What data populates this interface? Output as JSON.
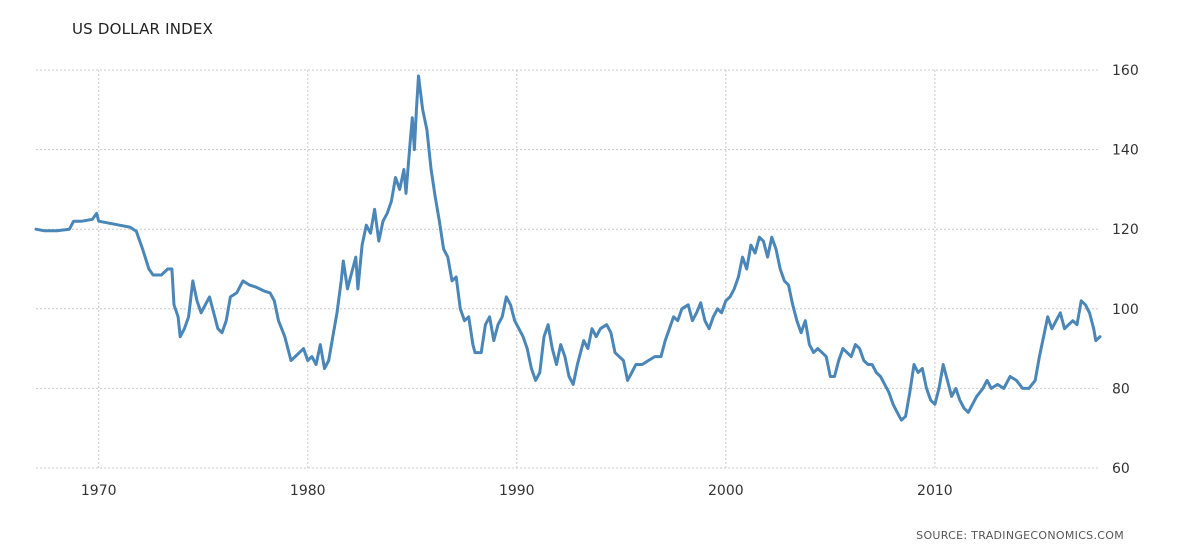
{
  "chart_data": {
    "type": "line",
    "title": "US DOLLAR INDEX",
    "source": "SOURCE: TRADINGECONOMICS.COM",
    "xlabel": "",
    "ylabel": "",
    "xlim": [
      1967.0,
      2017.9
    ],
    "ylim": [
      60,
      160
    ],
    "x_ticks": [
      1970,
      1980,
      1990,
      2000,
      2010
    ],
    "y_ticks": [
      60,
      80,
      100,
      120,
      140,
      160
    ],
    "grid": true,
    "line_color": "#4a86b8",
    "series": [
      {
        "points": [
          [
            1967.0,
            120
          ],
          [
            1967.4,
            119.6
          ],
          [
            1968.0,
            119.6
          ],
          [
            1968.6,
            120
          ],
          [
            1968.8,
            122
          ],
          [
            1969.2,
            122
          ],
          [
            1969.7,
            122.5
          ],
          [
            1969.9,
            124
          ],
          [
            1970.0,
            122
          ],
          [
            1970.5,
            121.5
          ],
          [
            1971.0,
            121
          ],
          [
            1971.5,
            120.5
          ],
          [
            1971.8,
            119.5
          ],
          [
            1972.1,
            115
          ],
          [
            1972.4,
            110
          ],
          [
            1972.6,
            108.5
          ],
          [
            1973.0,
            108.5
          ],
          [
            1973.3,
            110
          ],
          [
            1973.5,
            110
          ],
          [
            1973.6,
            101
          ],
          [
            1973.8,
            98
          ],
          [
            1973.9,
            93
          ],
          [
            1974.1,
            95
          ],
          [
            1974.3,
            98
          ],
          [
            1974.5,
            107
          ],
          [
            1974.7,
            102
          ],
          [
            1974.9,
            99
          ],
          [
            1975.1,
            101
          ],
          [
            1975.3,
            103
          ],
          [
            1975.5,
            99
          ],
          [
            1975.7,
            95
          ],
          [
            1975.9,
            94
          ],
          [
            1976.1,
            97
          ],
          [
            1976.3,
            103
          ],
          [
            1976.6,
            104
          ],
          [
            1976.9,
            107
          ],
          [
            1977.2,
            106
          ],
          [
            1977.5,
            105.5
          ],
          [
            1977.9,
            104.5
          ],
          [
            1978.2,
            104
          ],
          [
            1978.4,
            102
          ],
          [
            1978.6,
            97
          ],
          [
            1978.9,
            93
          ],
          [
            1979.2,
            87
          ],
          [
            1979.4,
            88
          ],
          [
            1979.6,
            89
          ],
          [
            1979.8,
            90
          ],
          [
            1980.0,
            87
          ],
          [
            1980.2,
            88
          ],
          [
            1980.4,
            86
          ],
          [
            1980.6,
            91
          ],
          [
            1980.8,
            85
          ],
          [
            1981.0,
            87
          ],
          [
            1981.2,
            93
          ],
          [
            1981.4,
            99
          ],
          [
            1981.6,
            107
          ],
          [
            1981.7,
            112
          ],
          [
            1981.9,
            105
          ],
          [
            1982.1,
            109
          ],
          [
            1982.3,
            113
          ],
          [
            1982.4,
            105
          ],
          [
            1982.6,
            116
          ],
          [
            1982.8,
            121
          ],
          [
            1983.0,
            119
          ],
          [
            1983.2,
            125
          ],
          [
            1983.4,
            117
          ],
          [
            1983.6,
            122
          ],
          [
            1983.8,
            124
          ],
          [
            1984.0,
            127
          ],
          [
            1984.2,
            133
          ],
          [
            1984.4,
            130
          ],
          [
            1984.6,
            135
          ],
          [
            1984.7,
            129
          ],
          [
            1984.9,
            142
          ],
          [
            1985.0,
            148
          ],
          [
            1985.1,
            140
          ],
          [
            1985.2,
            150
          ],
          [
            1985.3,
            158.5
          ],
          [
            1985.5,
            150
          ],
          [
            1985.7,
            145
          ],
          [
            1985.9,
            135
          ],
          [
            1986.1,
            128
          ],
          [
            1986.3,
            122
          ],
          [
            1986.5,
            115
          ],
          [
            1986.7,
            113
          ],
          [
            1986.9,
            107
          ],
          [
            1987.1,
            108
          ],
          [
            1987.3,
            100
          ],
          [
            1987.5,
            97
          ],
          [
            1987.7,
            98
          ],
          [
            1987.9,
            91
          ],
          [
            1988.0,
            89
          ],
          [
            1988.3,
            89
          ],
          [
            1988.5,
            96
          ],
          [
            1988.7,
            98
          ],
          [
            1988.9,
            92
          ],
          [
            1989.1,
            96
          ],
          [
            1989.3,
            98
          ],
          [
            1989.5,
            103
          ],
          [
            1989.7,
            101
          ],
          [
            1989.9,
            97
          ],
          [
            1990.1,
            95
          ],
          [
            1990.3,
            93
          ],
          [
            1990.5,
            90
          ],
          [
            1990.7,
            85
          ],
          [
            1990.9,
            82
          ],
          [
            1991.1,
            84
          ],
          [
            1991.3,
            93
          ],
          [
            1991.5,
            96
          ],
          [
            1991.7,
            90
          ],
          [
            1991.9,
            86
          ],
          [
            1992.1,
            91
          ],
          [
            1992.3,
            88
          ],
          [
            1992.5,
            83
          ],
          [
            1992.7,
            81
          ],
          [
            1992.9,
            86
          ],
          [
            1993.2,
            92
          ],
          [
            1993.4,
            90
          ],
          [
            1993.6,
            95
          ],
          [
            1993.8,
            93
          ],
          [
            1994.0,
            95
          ],
          [
            1994.3,
            96
          ],
          [
            1994.5,
            94
          ],
          [
            1994.7,
            89
          ],
          [
            1994.9,
            88
          ],
          [
            1995.1,
            87
          ],
          [
            1995.3,
            82
          ],
          [
            1995.5,
            84
          ],
          [
            1995.7,
            86
          ],
          [
            1996.0,
            86
          ],
          [
            1996.3,
            87
          ],
          [
            1996.6,
            88
          ],
          [
            1996.9,
            88
          ],
          [
            1997.1,
            92
          ],
          [
            1997.3,
            95
          ],
          [
            1997.5,
            98
          ],
          [
            1997.7,
            97
          ],
          [
            1997.9,
            100
          ],
          [
            1998.2,
            101
          ],
          [
            1998.4,
            97
          ],
          [
            1998.6,
            99
          ],
          [
            1998.8,
            101.5
          ],
          [
            1999.0,
            97
          ],
          [
            1999.2,
            95
          ],
          [
            1999.4,
            98
          ],
          [
            1999.6,
            100
          ],
          [
            1999.8,
            99
          ],
          [
            2000.0,
            102
          ],
          [
            2000.2,
            103
          ],
          [
            2000.4,
            105
          ],
          [
            2000.6,
            108
          ],
          [
            2000.8,
            113
          ],
          [
            2001.0,
            110
          ],
          [
            2001.2,
            116
          ],
          [
            2001.4,
            114
          ],
          [
            2001.6,
            118
          ],
          [
            2001.8,
            117
          ],
          [
            2002.0,
            113
          ],
          [
            2002.2,
            118
          ],
          [
            2002.4,
            115
          ],
          [
            2002.6,
            110
          ],
          [
            2002.8,
            107
          ],
          [
            2003.0,
            106
          ],
          [
            2003.2,
            101
          ],
          [
            2003.4,
            97
          ],
          [
            2003.6,
            94
          ],
          [
            2003.8,
            97
          ],
          [
            2004.0,
            91
          ],
          [
            2004.2,
            89
          ],
          [
            2004.4,
            90
          ],
          [
            2004.6,
            89
          ],
          [
            2004.8,
            88
          ],
          [
            2005.0,
            83
          ],
          [
            2005.2,
            83
          ],
          [
            2005.4,
            87
          ],
          [
            2005.6,
            90
          ],
          [
            2005.8,
            89
          ],
          [
            2006.0,
            88
          ],
          [
            2006.2,
            91
          ],
          [
            2006.4,
            90
          ],
          [
            2006.6,
            87
          ],
          [
            2006.8,
            86
          ],
          [
            2007.0,
            86
          ],
          [
            2007.2,
            84
          ],
          [
            2007.4,
            83
          ],
          [
            2007.6,
            81
          ],
          [
            2007.8,
            79
          ],
          [
            2008.0,
            76
          ],
          [
            2008.2,
            74
          ],
          [
            2008.4,
            72
          ],
          [
            2008.6,
            73
          ],
          [
            2008.8,
            79
          ],
          [
            2009.0,
            86
          ],
          [
            2009.2,
            84
          ],
          [
            2009.4,
            85
          ],
          [
            2009.6,
            80
          ],
          [
            2009.8,
            77
          ],
          [
            2010.0,
            76
          ],
          [
            2010.2,
            80
          ],
          [
            2010.4,
            86
          ],
          [
            2010.6,
            82
          ],
          [
            2010.8,
            78
          ],
          [
            2011.0,
            80
          ],
          [
            2011.2,
            77
          ],
          [
            2011.4,
            75
          ],
          [
            2011.6,
            74
          ],
          [
            2011.8,
            76
          ],
          [
            2012.0,
            78
          ],
          [
            2012.3,
            80
          ],
          [
            2012.5,
            82
          ],
          [
            2012.7,
            80
          ],
          [
            2013.0,
            81
          ],
          [
            2013.3,
            80
          ],
          [
            2013.6,
            83
          ],
          [
            2013.9,
            82
          ],
          [
            2014.2,
            80
          ],
          [
            2014.5,
            80
          ],
          [
            2014.8,
            82
          ],
          [
            2015.0,
            88
          ],
          [
            2015.2,
            93
          ],
          [
            2015.4,
            98
          ],
          [
            2015.6,
            95
          ],
          [
            2015.8,
            97
          ],
          [
            2016.0,
            99
          ],
          [
            2016.2,
            95
          ],
          [
            2016.4,
            96
          ],
          [
            2016.6,
            97
          ],
          [
            2016.8,
            96
          ],
          [
            2017.0,
            102
          ],
          [
            2017.2,
            101
          ],
          [
            2017.4,
            99
          ],
          [
            2017.6,
            95
          ],
          [
            2017.7,
            92
          ],
          [
            2017.9,
            93
          ]
        ]
      }
    ]
  }
}
